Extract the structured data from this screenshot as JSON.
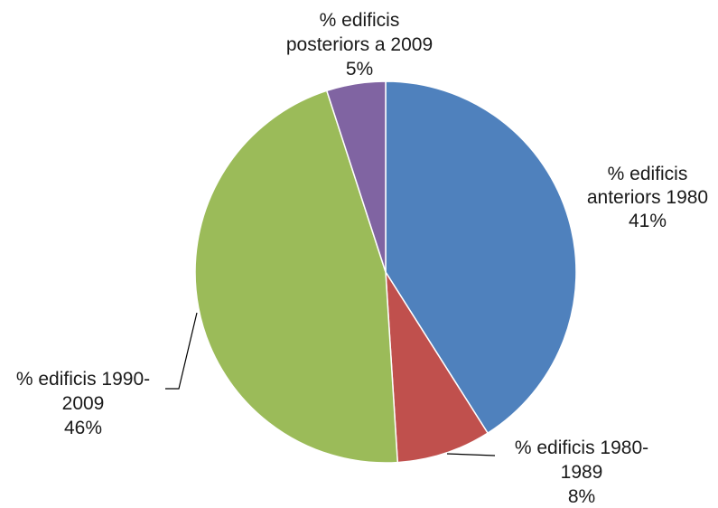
{
  "chart_data": {
    "type": "pie",
    "title": "",
    "slices": [
      {
        "line1": "% edificis",
        "line2": "anteriors 1980",
        "pct": "41%",
        "value": 41,
        "color": "#4f81bd"
      },
      {
        "line1": "% edificis 1980-",
        "line2": "1989",
        "pct": "8%",
        "value": 8,
        "color": "#c0504d"
      },
      {
        "line1": "% edificis 1990-",
        "line2": "2009",
        "pct": "46%",
        "value": 46,
        "color": "#9bbb59"
      },
      {
        "line1": "% edificis",
        "line2": "posteriors a 2009",
        "pct": "5%",
        "value": 5,
        "color": "#8064a2"
      }
    ],
    "start_angle_deg": 0,
    "direction": "clockwise",
    "legend": "none"
  }
}
